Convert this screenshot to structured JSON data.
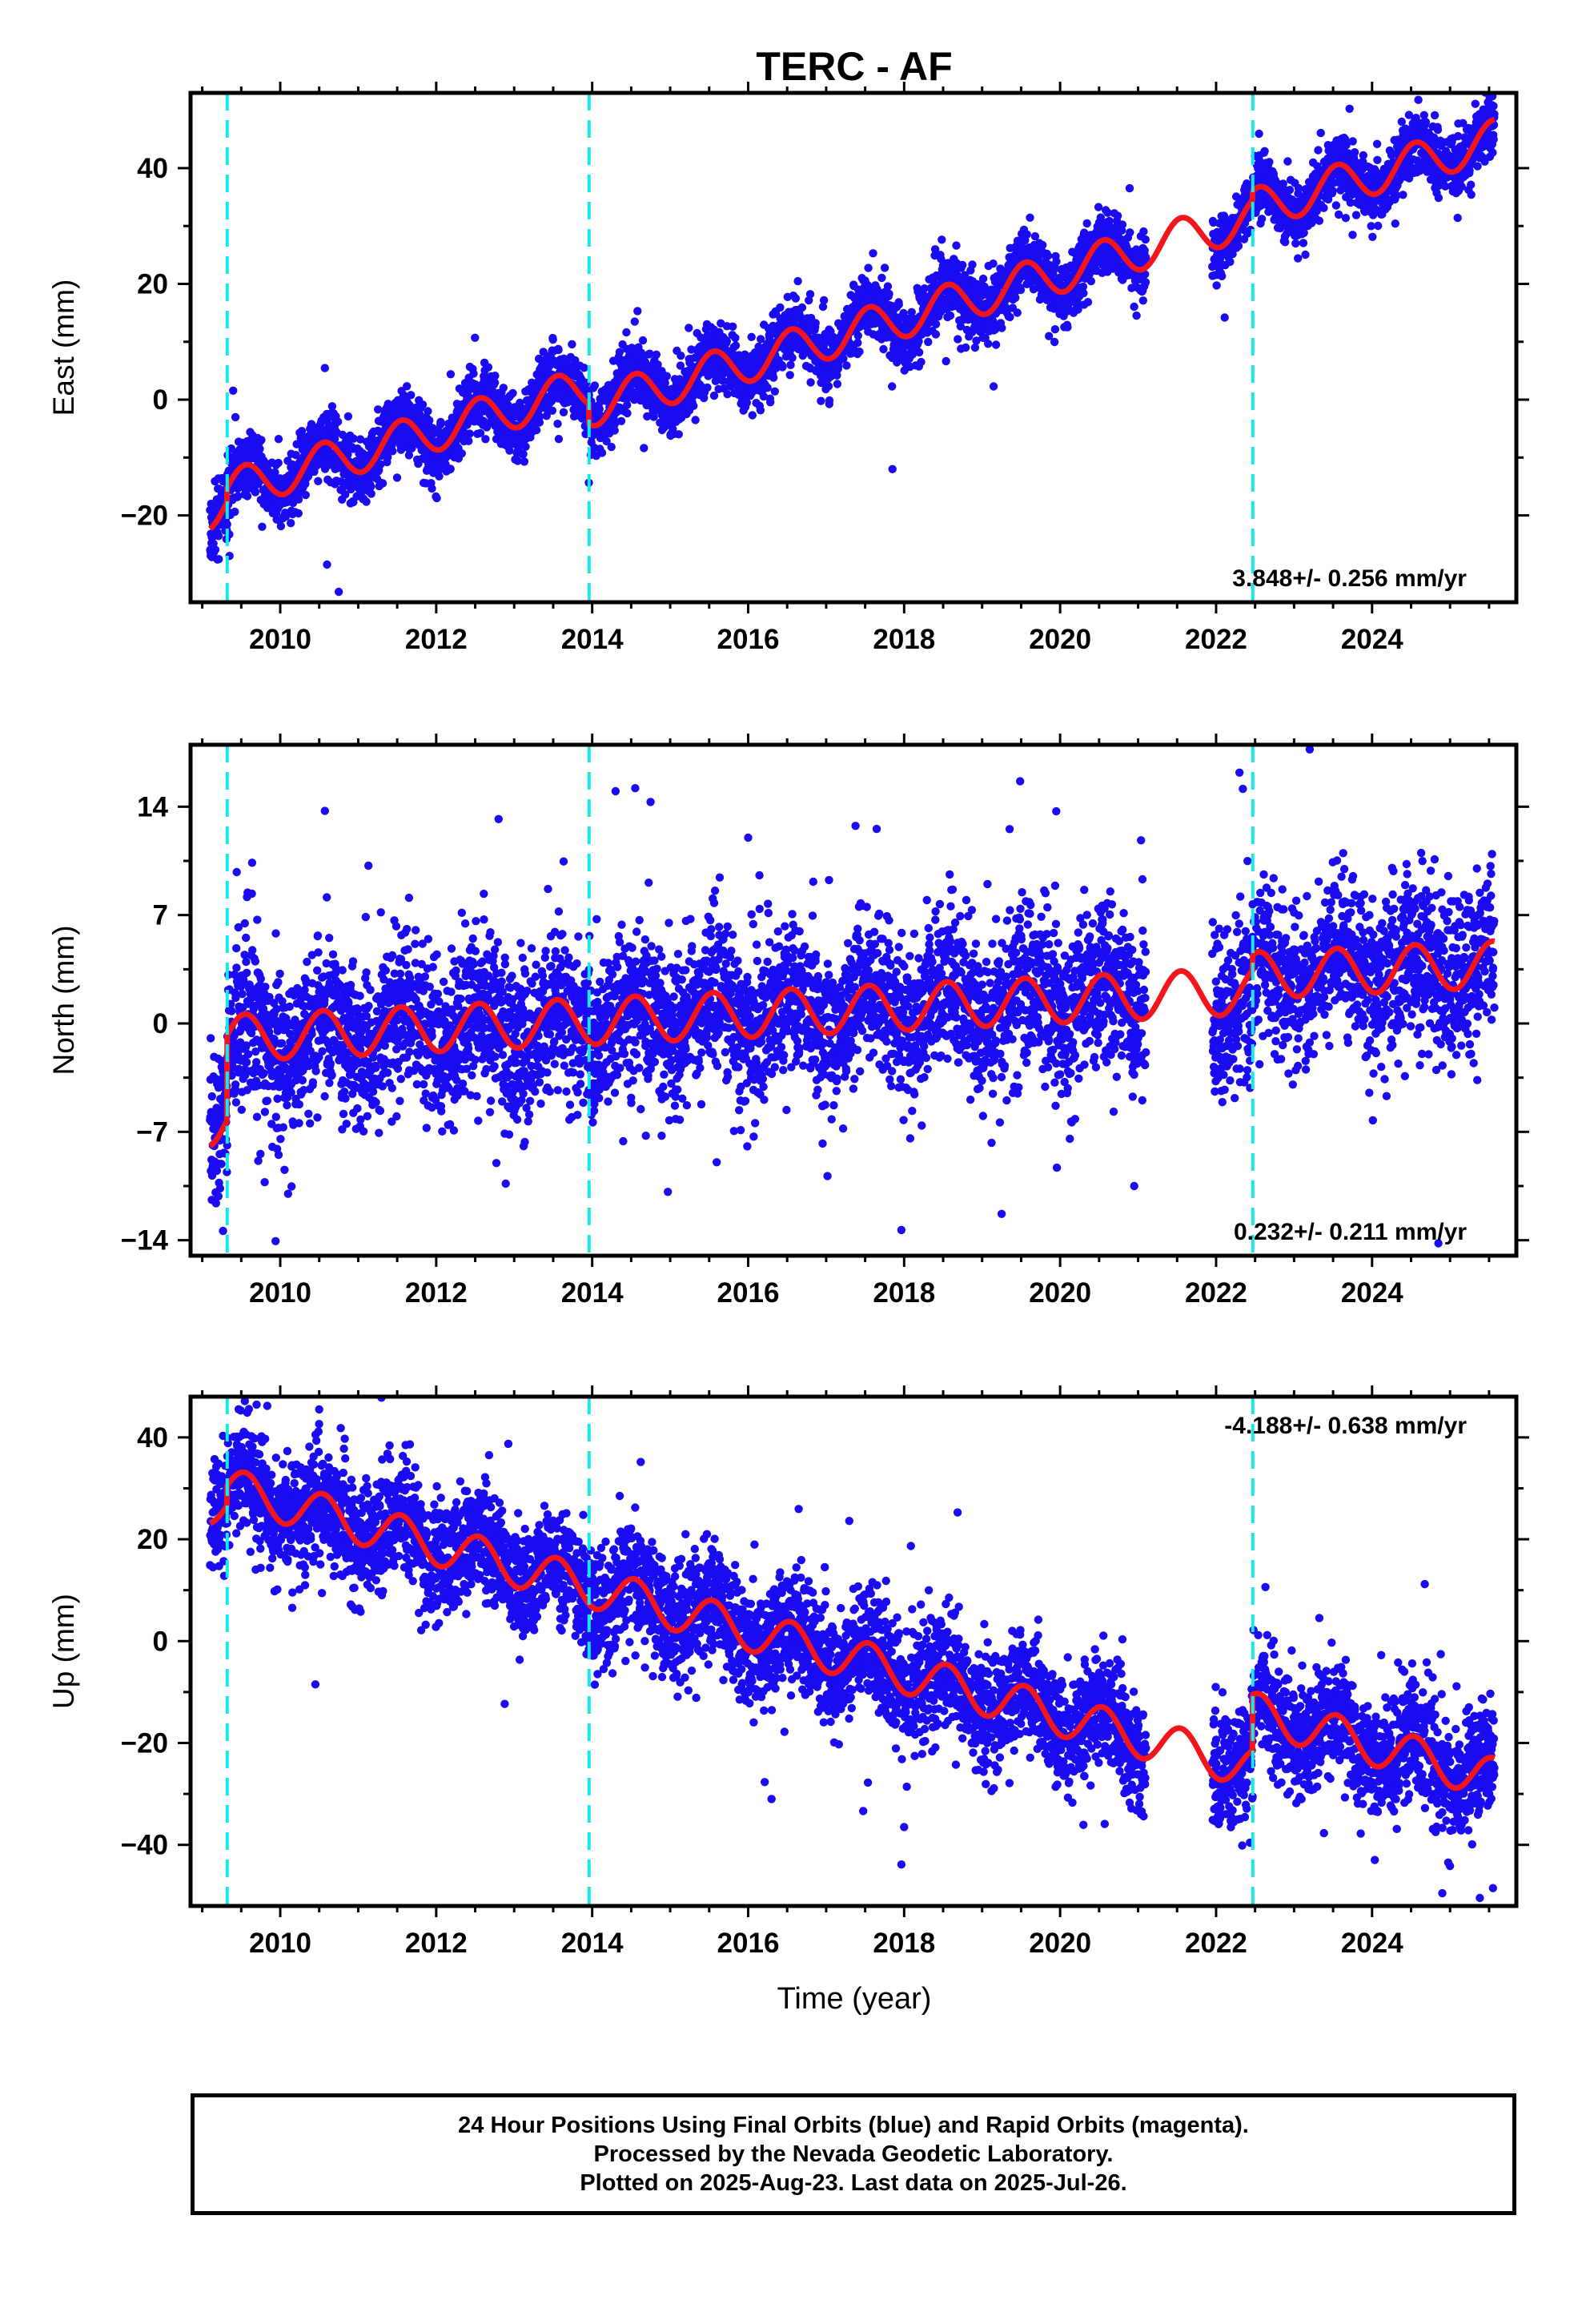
{
  "title": "TERC - AF",
  "xlabel": "Time (year)",
  "colors": {
    "data_points": "#1a0bf0",
    "model_line": "#f2161c",
    "event_lines": "#18e8ee",
    "frame": "#000000"
  },
  "caption": {
    "line1": "24 Hour Positions Using Final Orbits (blue) and Rapid Orbits (magenta).",
    "line2": "Processed by the Nevada Geodetic Laboratory.",
    "line3": "Plotted on 2025-Aug-23. Last data on 2025-Jul-26."
  },
  "chart_data": [
    {
      "type": "scatter",
      "component": "east",
      "ylabel": "East (mm)",
      "xlim": [
        2008.85,
        2025.85
      ],
      "ylim": [
        -35,
        53
      ],
      "xticks": [
        2010,
        2012,
        2014,
        2016,
        2018,
        2020,
        2022,
        2024
      ],
      "yticks": [
        -20,
        0,
        20,
        40
      ],
      "ytick_labels": [
        "−20",
        "0",
        "20",
        "40"
      ],
      "rate_label": "3.848+/- 0.256 mm/yr",
      "rate_label_position": "bottom-right",
      "event_lines_x": [
        2009.32,
        2013.96,
        2022.47
      ],
      "data_start": 2009.1,
      "data_end": 2025.57,
      "data_gap": [
        2021.1,
        2021.95
      ],
      "trend": {
        "ref_year": 2009.1,
        "value_at_ref": -19.0,
        "rate_mm_per_yr": 3.848
      },
      "offsets": [
        {
          "x": 2009.32,
          "jump": 2.5
        },
        {
          "x": 2013.96,
          "jump": -3.5
        },
        {
          "x": 2022.47,
          "jump": 1.5
        }
      ],
      "annual_amplitude_mm": 3.5,
      "annual_peak_fraction": 0.55,
      "scatter_sd_mm": 2.6,
      "outliers": [
        {
          "x": 2010.75,
          "y": -33.2
        },
        {
          "x": 2009.35,
          "y": -27.0
        },
        {
          "x": 2010.6,
          "y": -28.5
        },
        {
          "x": 2017.85,
          "y": -12.0
        }
      ]
    },
    {
      "type": "scatter",
      "component": "north",
      "ylabel": "North (mm)",
      "xlim": [
        2008.85,
        2025.85
      ],
      "ylim": [
        -15,
        18
      ],
      "xticks": [
        2010,
        2012,
        2014,
        2016,
        2018,
        2020,
        2022,
        2024
      ],
      "yticks": [
        -14,
        -7,
        0,
        7,
        14
      ],
      "ytick_labels": [
        "−14",
        "−7",
        "0",
        "7",
        "14"
      ],
      "rate_label": "0.232+/- 0.211 mm/yr",
      "rate_label_position": "bottom-right",
      "event_lines_x": [
        2009.32,
        2013.96,
        2022.47
      ],
      "data_start": 2009.1,
      "data_end": 2025.57,
      "data_gap": [
        2021.1,
        2021.95
      ],
      "trend": {
        "ref_year": 2009.1,
        "value_at_ref": -6.5,
        "rate_mm_per_yr": 0.232
      },
      "offsets": [
        {
          "x": 2009.32,
          "jump": 5.5
        },
        {
          "x": 2013.96,
          "jump": 0.0
        },
        {
          "x": 2022.47,
          "jump": 1.0
        }
      ],
      "annual_amplitude_mm": 1.5,
      "annual_peak_fraction": 0.55,
      "scatter_sd_mm": 2.6,
      "outliers": [
        {
          "x": 2024.85,
          "y": -14.2
        },
        {
          "x": 2019.25,
          "y": -12.3
        },
        {
          "x": 2023.2,
          "y": 17.7
        },
        {
          "x": 2022.3,
          "y": 16.2
        },
        {
          "x": 2014.3,
          "y": 15.0
        },
        {
          "x": 2012.8,
          "y": 13.2
        },
        {
          "x": 2019.95,
          "y": 13.7
        },
        {
          "x": 2016.0,
          "y": 12.0
        },
        {
          "x": 2010.1,
          "y": -11.0
        },
        {
          "x": 2020.95,
          "y": -10.5
        }
      ]
    },
    {
      "type": "scatter",
      "component": "up",
      "ylabel": "Up (mm)",
      "xlim": [
        2008.85,
        2025.85
      ],
      "ylim": [
        -52,
        48
      ],
      "xticks": [
        2010,
        2012,
        2014,
        2016,
        2018,
        2020,
        2022,
        2024
      ],
      "yticks": [
        -40,
        -20,
        0,
        20,
        40
      ],
      "ytick_labels": [
        "−40",
        "−20",
        "0",
        "20",
        "40"
      ],
      "rate_label": "-4.188+/- 0.638 mm/yr",
      "rate_label_position": "top-right",
      "event_lines_x": [
        2009.32,
        2013.96,
        2022.47
      ],
      "data_start": 2009.1,
      "data_end": 2025.57,
      "data_gap": [
        2021.1,
        2021.95
      ],
      "trend": {
        "ref_year": 2009.1,
        "value_at_ref": 27.0,
        "rate_mm_per_yr": -4.188
      },
      "offsets": [
        {
          "x": 2009.32,
          "jump": 4.0
        },
        {
          "x": 2013.96,
          "jump": 0.0
        },
        {
          "x": 2022.47,
          "jump": 11.0
        }
      ],
      "annual_amplitude_mm": 4.0,
      "annual_peak_fraction": 0.55,
      "scatter_sd_mm": 5.5,
      "outliers": [
        {
          "x": 2010.5,
          "y": 45.5
        },
        {
          "x": 2010.45,
          "y": -8.5
        },
        {
          "x": 2024.9,
          "y": -49.5
        },
        {
          "x": 2025.55,
          "y": -48.5
        },
        {
          "x": 2016.3,
          "y": -31.0
        },
        {
          "x": 2018.0,
          "y": -36.5
        }
      ]
    }
  ]
}
